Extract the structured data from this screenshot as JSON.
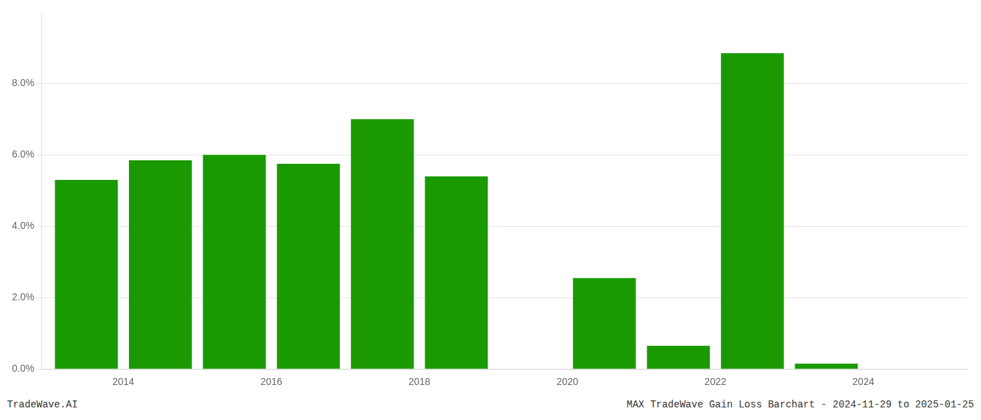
{
  "chart_data": {
    "type": "bar",
    "x": [
      2013,
      2014,
      2015,
      2016,
      2017,
      2018,
      2019,
      2020,
      2021,
      2022,
      2023,
      2024
    ],
    "values": [
      0.053,
      0.0585,
      0.06,
      0.0575,
      0.07,
      0.054,
      0.0,
      0.0255,
      0.0065,
      0.0885,
      0.0015,
      0.0
    ],
    "color": "#1a9a00",
    "xlim": [
      2012.4,
      2024.9
    ],
    "xticks": [
      {
        "value": 2013.5,
        "label": "2014"
      },
      {
        "value": 2015.5,
        "label": "2016"
      },
      {
        "value": 2017.5,
        "label": "2018"
      },
      {
        "value": 2019.5,
        "label": "2020"
      },
      {
        "value": 2021.5,
        "label": "2022"
      },
      {
        "value": 2023.5,
        "label": "2024"
      }
    ],
    "ylim": [
      0,
      0.1
    ],
    "yticks": [
      {
        "value": 0.0,
        "label": "0.0%"
      },
      {
        "value": 0.02,
        "label": "2.0%"
      },
      {
        "value": 0.04,
        "label": "4.0%"
      },
      {
        "value": 0.06,
        "label": "6.0%"
      },
      {
        "value": 0.08,
        "label": "8.0%"
      }
    ],
    "grid": "y",
    "annotations": [
      "TradeWave.AI",
      "MAX TradeWave Gain Loss Barchart - 2024-11-29 to 2025-01-25"
    ]
  }
}
